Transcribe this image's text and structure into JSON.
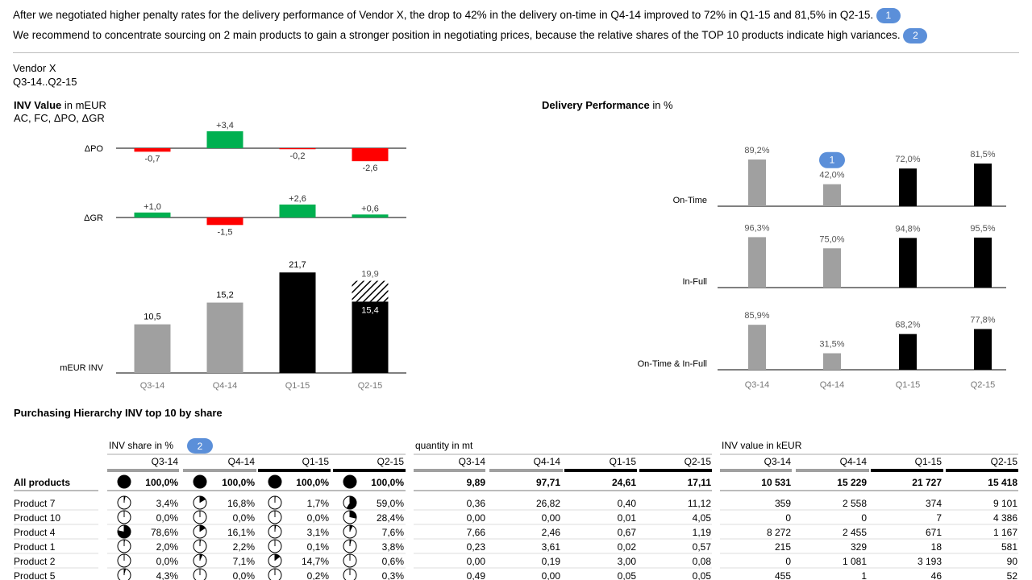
{
  "messages": [
    {
      "text": "After we negotiated higher penalty rates for the delivery performance of Vendor X, the drop to 42% in the delivery on-time in Q4-14 improved to 72% in Q1-15 and 81,5% in Q2-15.",
      "badge": "1"
    },
    {
      "text": "We recommend to concentrate sourcing on 2 main products to gain a stronger position in negotiating prices, because the relative shares of the TOP 10 products indicate high variances.",
      "badge": "2"
    }
  ],
  "header": {
    "entity": "Vendor X",
    "period": "Q3-14..Q2-15"
  },
  "colors": {
    "gray": "#a0a0a0",
    "black": "#000000",
    "green": "#00b050",
    "red": "#ff0000",
    "badge": "#5b8fd9"
  },
  "chart_data": [
    {
      "type": "bar",
      "title": "INV Value",
      "title_unit": "in mEUR",
      "subtitle": "AC, FC, ΔPO, ΔGR",
      "categories": [
        "Q3-14",
        "Q4-14",
        "Q1-15",
        "Q2-15"
      ],
      "series": [
        {
          "name": "ΔPO",
          "values": [
            -0.7,
            3.4,
            -0.2,
            -2.6
          ],
          "labels": [
            "-0,7",
            "+3,4",
            "-0,2",
            "-2,6"
          ]
        },
        {
          "name": "ΔGR",
          "values": [
            1.0,
            -1.5,
            2.6,
            0.6
          ],
          "labels": [
            "+1,0",
            "-1,5",
            "+2,6",
            "+0,6"
          ]
        },
        {
          "name": "mEUR INV",
          "values": [
            10.5,
            15.2,
            21.7,
            15.4
          ],
          "labels": [
            "10,5",
            "15,2",
            "21,7",
            "15,4"
          ],
          "forecast_total": 19.9,
          "forecast_label": "19,9",
          "scenario": [
            "AC",
            "AC",
            "AC",
            "AC+FC"
          ]
        }
      ]
    },
    {
      "type": "bar",
      "title": "Delivery Performance",
      "title_unit": "in %",
      "categories": [
        "Q3-14",
        "Q4-14",
        "Q1-15",
        "Q2-15"
      ],
      "annotation": {
        "category": "Q4-14",
        "row": "On-Time",
        "badge": "1"
      },
      "series": [
        {
          "name": "On-Time",
          "values": [
            89.2,
            42.0,
            72.0,
            81.5
          ],
          "labels": [
            "89,2%",
            "42,0%",
            "72,0%",
            "81,5%"
          ]
        },
        {
          "name": "In-Full",
          "values": [
            96.3,
            75.0,
            94.8,
            95.5
          ],
          "labels": [
            "96,3%",
            "75,0%",
            "94,8%",
            "95,5%"
          ]
        },
        {
          "name": "On-Time & In-Full",
          "values": [
            85.9,
            31.5,
            68.2,
            77.8
          ],
          "labels": [
            "85,9%",
            "31,5%",
            "68,2%",
            "77,8%"
          ]
        }
      ]
    }
  ],
  "table": {
    "title": "Purchasing Hierarchy INV top 10 by share",
    "groups": [
      {
        "label": "INV share in %",
        "badge": "2"
      },
      {
        "label": "quantity in mt"
      },
      {
        "label": "INV value in kEUR"
      }
    ],
    "periods": [
      "Q3-14",
      "Q4-14",
      "Q1-15",
      "Q2-15"
    ],
    "rows": [
      {
        "name": "All products",
        "bold": true,
        "share": [
          "100,0%",
          "100,0%",
          "100,0%",
          "100,0%"
        ],
        "share_values": [
          100,
          100,
          100,
          100
        ],
        "qty": [
          "9,89",
          "97,71",
          "24,61",
          "17,11"
        ],
        "value": [
          "10 531",
          "15 229",
          "21 727",
          "15 418"
        ]
      },
      {
        "name": "Product 7",
        "share": [
          "3,4%",
          "16,8%",
          "1,7%",
          "59,0%"
        ],
        "share_values": [
          3.4,
          16.8,
          1.7,
          59.0
        ],
        "qty": [
          "0,36",
          "26,82",
          "0,40",
          "11,12"
        ],
        "value": [
          "359",
          "2 558",
          "374",
          "9 101"
        ]
      },
      {
        "name": "Product 10",
        "share": [
          "0,0%",
          "0,0%",
          "0,0%",
          "28,4%"
        ],
        "share_values": [
          0,
          0,
          0,
          28.4
        ],
        "qty": [
          "0,00",
          "0,00",
          "0,01",
          "4,05"
        ],
        "value": [
          "0",
          "0",
          "7",
          "4 386"
        ]
      },
      {
        "name": "Product 4",
        "share": [
          "78,6%",
          "16,1%",
          "3,1%",
          "7,6%"
        ],
        "share_values": [
          78.6,
          16.1,
          3.1,
          7.6
        ],
        "qty": [
          "7,66",
          "2,46",
          "0,67",
          "1,19"
        ],
        "value": [
          "8 272",
          "2 455",
          "671",
          "1 167"
        ]
      },
      {
        "name": "Product 1",
        "share": [
          "2,0%",
          "2,2%",
          "0,1%",
          "3,8%"
        ],
        "share_values": [
          2.0,
          2.2,
          0.1,
          3.8
        ],
        "qty": [
          "0,23",
          "3,61",
          "0,02",
          "0,57"
        ],
        "value": [
          "215",
          "329",
          "18",
          "581"
        ]
      },
      {
        "name": "Product 2",
        "share": [
          "0,0%",
          "7,1%",
          "14,7%",
          "0,6%"
        ],
        "share_values": [
          0,
          7.1,
          14.7,
          0.6
        ],
        "qty": [
          "0,00",
          "0,19",
          "3,00",
          "0,08"
        ],
        "value": [
          "0",
          "1 081",
          "3 193",
          "90"
        ]
      },
      {
        "name": "Product 5",
        "share": [
          "4,3%",
          "0,0%",
          "0,2%",
          "0,3%"
        ],
        "share_values": [
          4.3,
          0,
          0.2,
          0.3
        ],
        "qty": [
          "0,49",
          "0,00",
          "0,05",
          "0,05"
        ],
        "value": [
          "455",
          "1",
          "46",
          "52"
        ]
      }
    ]
  }
}
